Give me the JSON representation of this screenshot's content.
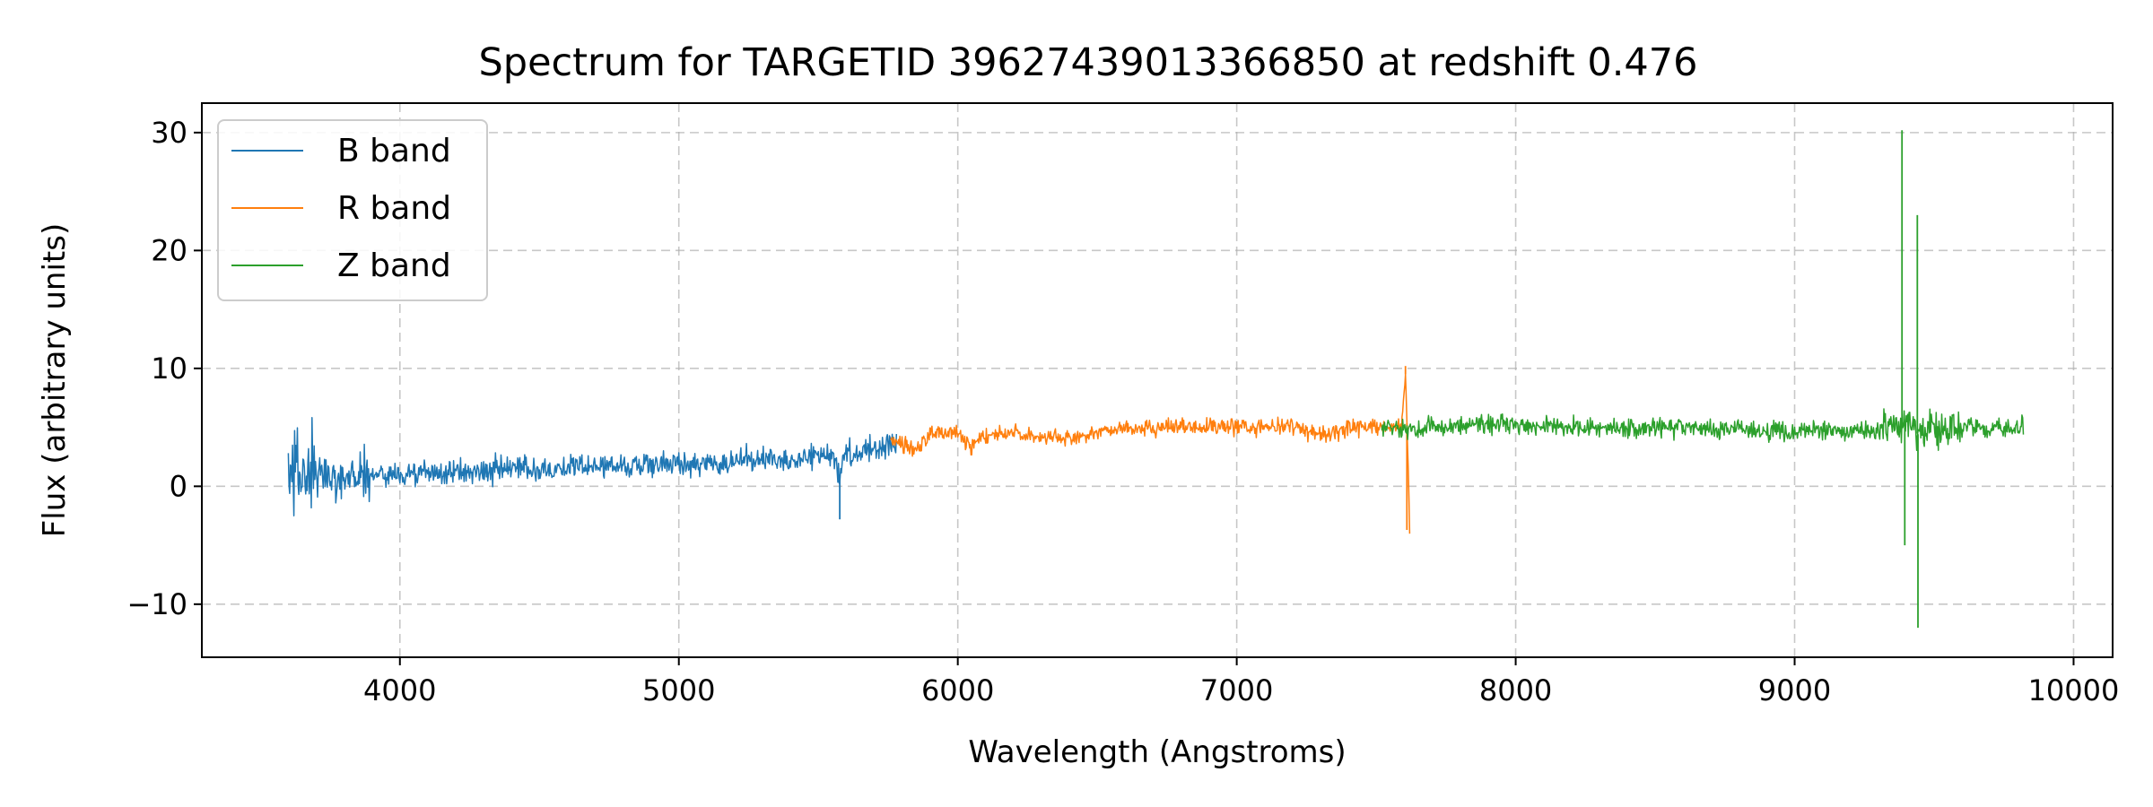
{
  "chart_data": {
    "type": "line",
    "title": "Spectrum for TARGETID 39627439013366850 at redshift 0.476",
    "xlabel": "Wavelength (Angstroms)",
    "ylabel": "Flux (arbitrary units)",
    "xlim": [
      3290,
      10140
    ],
    "ylim": [
      -14.5,
      32.5
    ],
    "xticks": [
      4000,
      5000,
      6000,
      7000,
      8000,
      9000,
      10000
    ],
    "xtick_labels": [
      "4000",
      "5000",
      "6000",
      "7000",
      "8000",
      "9000",
      "10000"
    ],
    "yticks": [
      -10,
      0,
      10,
      20,
      30
    ],
    "ytick_labels": [
      "−10",
      "0",
      "10",
      "20",
      "30"
    ],
    "grid": true,
    "legend_position": "top-left",
    "series": [
      {
        "name": "B band",
        "color": "#1f77b4",
        "x": [
          3600,
          3620,
          3650,
          3700,
          3800,
          3900,
          4000,
          4200,
          4400,
          4600,
          4800,
          5000,
          5200,
          5400,
          5560,
          5575,
          5590,
          5700,
          5780
        ],
        "y": [
          1.0,
          1.5,
          1.0,
          0.8,
          0.9,
          1.0,
          1.0,
          1.2,
          1.4,
          1.6,
          1.8,
          1.9,
          2.1,
          2.4,
          2.7,
          0.5,
          2.8,
          3.2,
          3.6
        ]
      },
      {
        "name": "R band",
        "color": "#ff7f0e",
        "x": [
          5760,
          5800,
          5850,
          5900,
          6000,
          6050,
          6100,
          6200,
          6300,
          6400,
          6500,
          6600,
          6800,
          7000,
          7100,
          7200,
          7300,
          7400,
          7500,
          7590,
          7605,
          7620
        ],
        "y": [
          3.8,
          3.5,
          3.0,
          4.4,
          4.6,
          3.4,
          4.3,
          4.6,
          4.2,
          3.9,
          4.6,
          4.9,
          5.0,
          5.1,
          5.0,
          5.2,
          4.3,
          4.9,
          5.0,
          5.0,
          9.5,
          -3.0
        ]
      },
      {
        "name": "Z band",
        "color": "#2ca02c",
        "x": [
          7520,
          7600,
          7700,
          7800,
          7900,
          8000,
          8200,
          8400,
          8600,
          8800,
          9000,
          9200,
          9330,
          9390,
          9420,
          9450,
          9480,
          9520,
          9600,
          9700,
          9820
        ],
        "y": [
          5.0,
          4.8,
          5.0,
          5.1,
          5.3,
          5.1,
          5.0,
          4.9,
          5.0,
          4.8,
          4.7,
          4.6,
          4.9,
          5.3,
          5.0,
          4.2,
          5.4,
          4.8,
          5.0,
          4.9,
          5.1
        ]
      }
    ],
    "annotated_spikes": [
      {
        "series": "B band",
        "x": 5577,
        "y": -2.8
      },
      {
        "series": "R band",
        "x": 7605,
        "y": 10.2
      },
      {
        "series": "R band",
        "x": 7610,
        "y": -3.7
      },
      {
        "series": "Z band",
        "x": 9385,
        "y": 30.2
      },
      {
        "series": "Z band",
        "x": 9440,
        "y": 23.0
      },
      {
        "series": "Z band",
        "x": 9442,
        "y": -12.0
      },
      {
        "series": "Z band",
        "x": 9395,
        "y": -5.0
      }
    ]
  }
}
